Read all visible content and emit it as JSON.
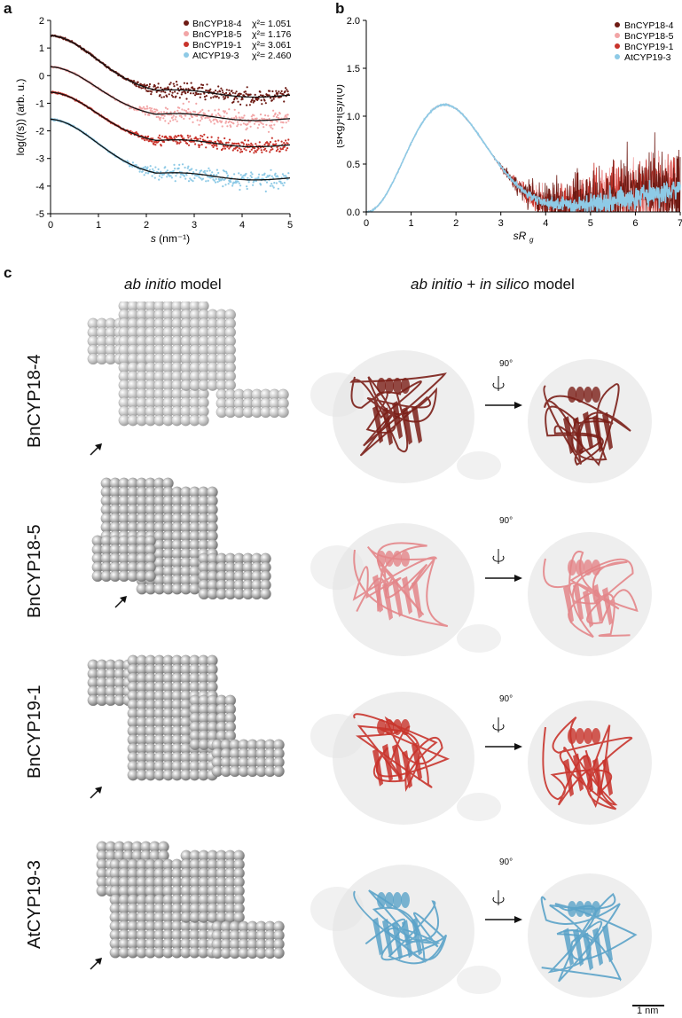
{
  "panels": {
    "a": {
      "letter": "a"
    },
    "b": {
      "letter": "b"
    },
    "c": {
      "letter": "c"
    }
  },
  "colors": {
    "BnCYP18-4": "#6e1b14",
    "BnCYP18-5": "#f2a5a6",
    "BnCYP19-1": "#c8332b",
    "AtCYP19-3": "#8ecae6",
    "fit": "#111111"
  },
  "chart_data": [
    {
      "type": "scatter",
      "panel": "a",
      "xlabel_prefix": "s",
      "xlabel_suffix": " (nm⁻¹)",
      "ylabel_prefix": "log(",
      "ylabel_italic": "I",
      "ylabel_suffix": "(s)) (arb. u.)",
      "xlim": [
        0,
        5
      ],
      "ylim": [
        -5,
        2
      ],
      "xticks": [
        "0",
        "1",
        "2",
        "3",
        "4",
        "5"
      ],
      "yticks": [
        "-5",
        "-4",
        "-3",
        "-2",
        "-1",
        "0",
        "1",
        "2"
      ],
      "legend_position": "top-right",
      "series": [
        {
          "name": "BnCYP18-4",
          "chi": "χ²= 1.051",
          "plateau_start": 1.45,
          "plateau_end": -0.7,
          "noise": 0.18
        },
        {
          "name": "BnCYP18-5",
          "chi": "χ²= 1.176",
          "plateau_start": 0.32,
          "plateau_end": -1.55,
          "noise": 0.22
        },
        {
          "name": "BnCYP19-1",
          "chi": "χ²= 3.061",
          "plateau_start": -0.6,
          "plateau_end": -2.5,
          "noise": 0.16
        },
        {
          "name": "AtCYP19-3",
          "chi": "χ²= 2.460",
          "plateau_start": -1.58,
          "plateau_end": -3.7,
          "noise": 0.22
        }
      ]
    },
    {
      "type": "line",
      "panel": "b",
      "xlabel": "sR",
      "xlabel_sub": "g",
      "ylabel": "(sRg)²I(s)/I(0)",
      "xlim": [
        0,
        7
      ],
      "ylim": [
        0.0,
        2.0
      ],
      "xticks": [
        "0",
        "1",
        "2",
        "3",
        "4",
        "5",
        "6",
        "7"
      ],
      "yticks": [
        "0.0",
        "0.5",
        "1.0",
        "1.5",
        "2.0"
      ],
      "peak": {
        "x": 1.75,
        "y": 1.12
      },
      "minimum": {
        "x": 3.8,
        "y": 0.15
      },
      "legend_position": "top-right",
      "series": [
        {
          "name": "BnCYP18-4"
        },
        {
          "name": "BnCYP18-5"
        },
        {
          "name": "BnCYP19-1"
        },
        {
          "name": "AtCYP19-3"
        }
      ]
    }
  ],
  "panel_c": {
    "col_ab_initio": {
      "italic": "ab initio",
      "rest": " model"
    },
    "col_hybrid": {
      "italic1": "ab initio",
      "plus": " + ",
      "italic2": "in silico",
      "rest": " model"
    },
    "rotation_label": "90°",
    "rows": [
      {
        "label": "BnCYP18-4",
        "shade": "#f4f4f4",
        "ribbon": "#7a1e17"
      },
      {
        "label": "BnCYP18-5",
        "shade": "#c9c9c9",
        "ribbon": "#e38588"
      },
      {
        "label": "BnCYP19-1",
        "shade": "#c9c9c9",
        "ribbon": "#c8332b"
      },
      {
        "label": "AtCYP19-3",
        "shade": "#c9c9c9",
        "ribbon": "#5aa2c8"
      }
    ],
    "scale_bar": "1 nm"
  }
}
